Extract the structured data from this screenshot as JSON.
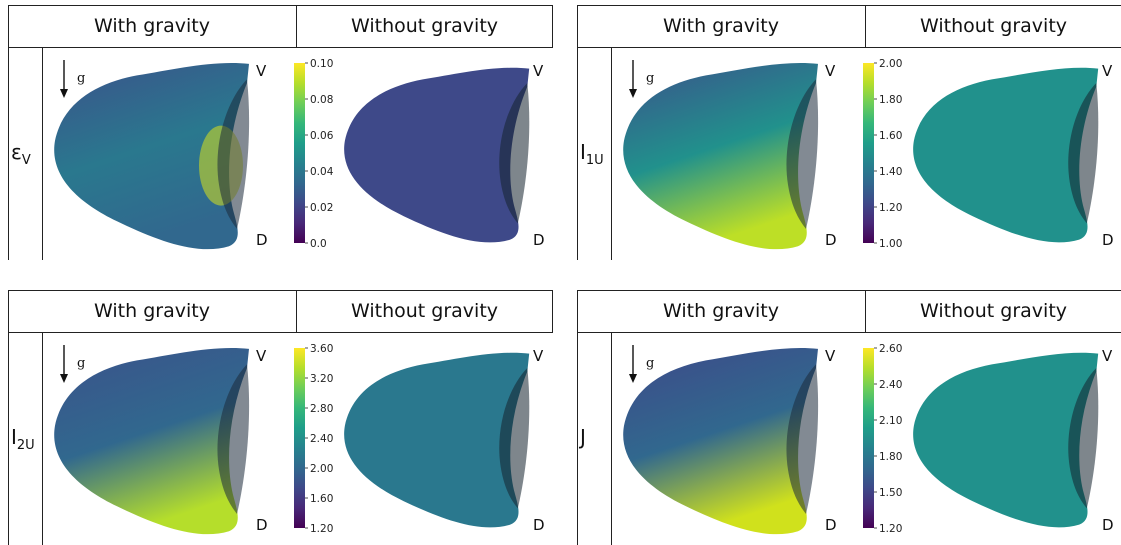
{
  "headers": {
    "with_gravity": "With gravity",
    "without_gravity": "Without gravity"
  },
  "orientation": {
    "ventral": "V",
    "dorsal": "D",
    "gravity": "g"
  },
  "panels": [
    {
      "id": "ev",
      "row_label": "ε",
      "row_label_sub": "V",
      "colorbar": {
        "ticks": [
          "0.10",
          "0.08",
          "0.06",
          "0.04",
          "0.02",
          "0.0"
        ]
      },
      "colors": {
        "with_top": "#3b528b",
        "with_mid": "#2a788e",
        "with_bottom": "#31688e",
        "with_hot": "#d8e219",
        "without": "#3e4989"
      }
    },
    {
      "id": "i1u",
      "row_label": "I",
      "row_label_sub": "1U",
      "colorbar": {
        "ticks": [
          "2.00",
          "1.80",
          "1.60",
          "1.40",
          "1.20",
          "1.00"
        ]
      },
      "colors": {
        "with_top": "#3b528b",
        "with_mid": "#21918c",
        "with_bottom": "#bddf26",
        "with_hot": "#d8e219",
        "without": "#21918c"
      }
    },
    {
      "id": "i2u",
      "row_label": "I",
      "row_label_sub": "2U",
      "colorbar": {
        "ticks": [
          "3.60",
          "3.20",
          "2.80",
          "2.40",
          "2.00",
          "1.60",
          "1.20"
        ]
      },
      "colors": {
        "with_top": "#3b528b",
        "with_mid": "#31688e",
        "with_bottom": "#b5de2b",
        "with_hot": "#d8e219",
        "without": "#2a788e"
      }
    },
    {
      "id": "j",
      "row_label": "J",
      "row_label_sub": "",
      "colorbar": {
        "ticks": [
          "2.60",
          "2.40",
          "2.10",
          "1.80",
          "1.50",
          "1.20"
        ]
      },
      "colors": {
        "with_top": "#3e4989",
        "with_mid": "#31688e",
        "with_bottom": "#d0e11c",
        "with_hot": "#d8e219",
        "without": "#21918c"
      }
    }
  ]
}
